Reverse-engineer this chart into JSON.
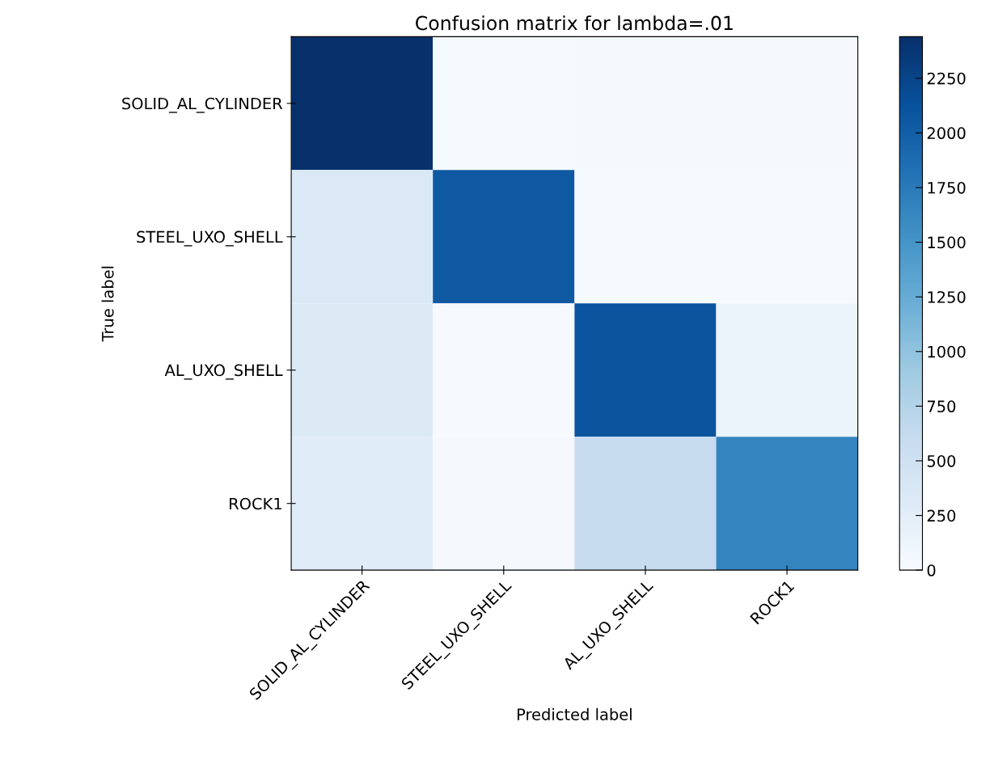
{
  "chart_data": {
    "type": "heatmap",
    "title": "Confusion matrix for lambda=.01",
    "xlabel": "Predicted label",
    "ylabel": "True label",
    "categories": [
      "SOLID_AL_CYLINDER",
      "STEEL_UXO_SHELL",
      "AL_UXO_SHELL",
      "ROCK1"
    ],
    "y_categories": [
      "SOLID_AL_CYLINDER",
      "STEEL_UXO_SHELL",
      "AL_UXO_SHELL",
      "ROCK1"
    ],
    "cells": [
      [
        2440,
        20,
        40,
        30
      ],
      [
        350,
        2050,
        20,
        20
      ],
      [
        330,
        10,
        2100,
        150
      ],
      [
        280,
        30,
        600,
        1650
      ]
    ],
    "clim": [
      0,
      2440
    ],
    "cticks": [
      0,
      250,
      500,
      750,
      1000,
      1250,
      1500,
      1750,
      2000,
      2250
    ],
    "grid": false
  }
}
